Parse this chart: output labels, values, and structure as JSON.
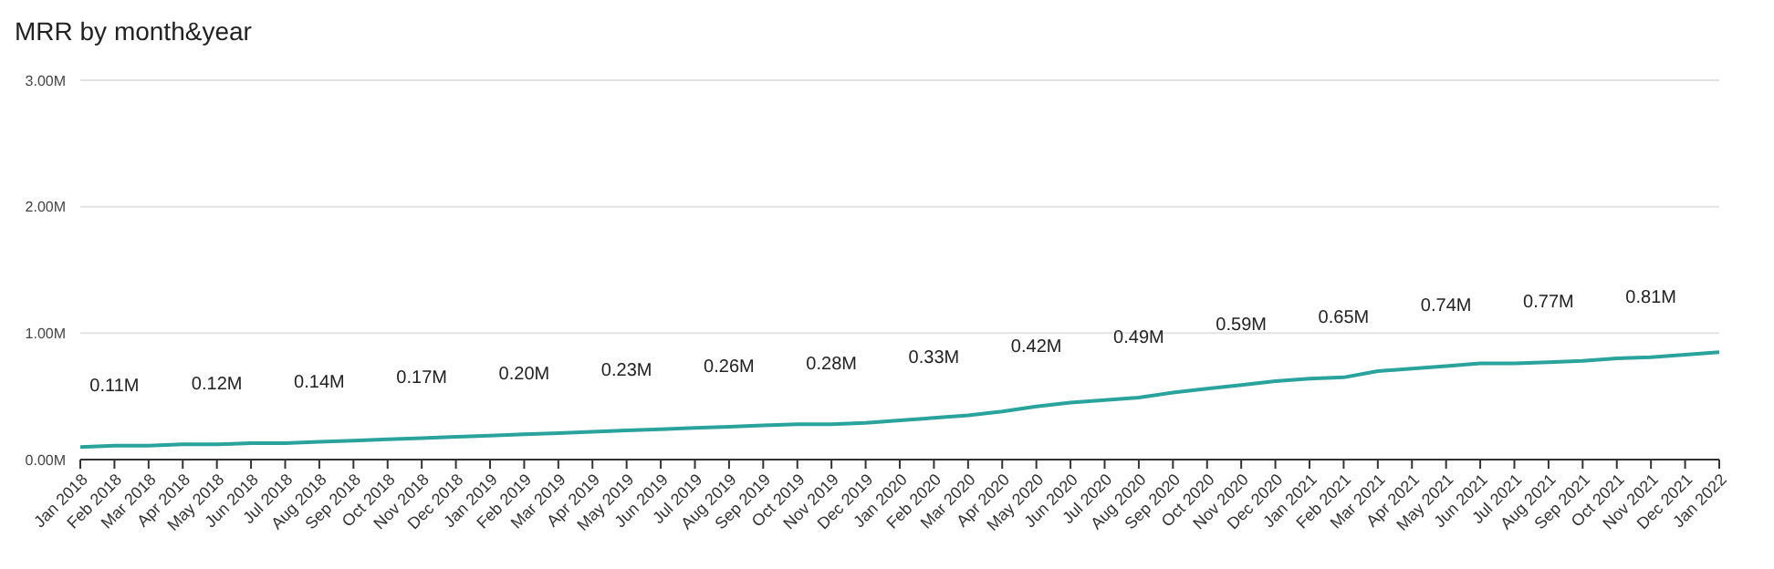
{
  "chart_data": {
    "type": "line",
    "title": "MRR by month&year",
    "categories": [
      "Jan 2018",
      "Feb 2018",
      "Mar 2018",
      "Apr 2018",
      "May 2018",
      "Jun 2018",
      "Jul 2018",
      "Aug 2018",
      "Sep 2018",
      "Oct 2018",
      "Nov 2018",
      "Dec 2018",
      "Jan 2019",
      "Feb 2019",
      "Mar 2019",
      "Apr 2019",
      "May 2019",
      "Jun 2019",
      "Jul 2019",
      "Aug 2019",
      "Sep 2019",
      "Oct 2019",
      "Nov 2019",
      "Dec 2019",
      "Jan 2020",
      "Feb 2020",
      "Mar 2020",
      "Apr 2020",
      "May 2020",
      "Jun 2020",
      "Jul 2020",
      "Aug 2020",
      "Sep 2020",
      "Oct 2020",
      "Nov 2020",
      "Dec 2020",
      "Jan 2021",
      "Feb 2021",
      "Mar 2021",
      "Apr 2021",
      "May 2021",
      "Jun 2021",
      "Jul 2021",
      "Aug 2021",
      "Sep 2021",
      "Oct 2021",
      "Nov 2021",
      "Dec 2021",
      "Jan 2022"
    ],
    "series": [
      {
        "color": "#2aa39d",
        "values": [
          0.1,
          0.11,
          0.11,
          0.12,
          0.12,
          0.13,
          0.13,
          0.14,
          0.15,
          0.16,
          0.17,
          0.18,
          0.19,
          0.2,
          0.21,
          0.22,
          0.23,
          0.24,
          0.25,
          0.26,
          0.27,
          0.28,
          0.28,
          0.29,
          0.31,
          0.33,
          0.35,
          0.38,
          0.42,
          0.45,
          0.47,
          0.49,
          0.53,
          0.56,
          0.59,
          0.62,
          0.64,
          0.65,
          0.7,
          0.72,
          0.74,
          0.76,
          0.76,
          0.77,
          0.78,
          0.8,
          0.81,
          0.83,
          0.85
        ],
        "value_labels": [
          null,
          "0.11M",
          null,
          null,
          "0.12M",
          null,
          null,
          "0.14M",
          null,
          null,
          "0.17M",
          null,
          null,
          "0.20M",
          null,
          null,
          "0.23M",
          null,
          null,
          "0.26M",
          null,
          null,
          "0.28M",
          null,
          null,
          "0.33M",
          null,
          null,
          "0.42M",
          null,
          null,
          "0.49M",
          null,
          null,
          "0.59M",
          null,
          null,
          "0.65M",
          null,
          null,
          "0.74M",
          null,
          null,
          "0.77M",
          null,
          null,
          "0.81M",
          null,
          null
        ]
      }
    ],
    "ylim": [
      0,
      3
    ],
    "yticks": [
      {
        "value": 0,
        "label": "0.00M"
      },
      {
        "value": 1,
        "label": "1.00M"
      },
      {
        "value": 2,
        "label": "2.00M"
      },
      {
        "value": 3,
        "label": "3.00M"
      }
    ],
    "grid": "y",
    "legend": false,
    "marker": "none",
    "line_style": "solid"
  }
}
